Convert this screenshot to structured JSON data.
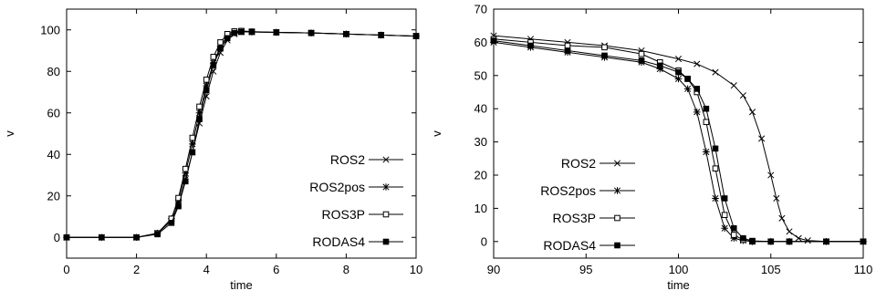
{
  "chart_data": [
    {
      "type": "line",
      "title": "",
      "xlabel": "time",
      "ylabel": "v",
      "xlim": [
        0,
        10
      ],
      "ylim": [
        -10,
        110
      ],
      "xticks": [
        "0",
        "2",
        "4",
        "6",
        "8",
        "10"
      ],
      "yticks": [
        "0",
        "20",
        "40",
        "60",
        "80",
        "100"
      ],
      "grid": false,
      "legend_position": "bottom-right",
      "series": [
        {
          "name": "ROS2",
          "marker": "x-cross",
          "x": [
            0,
            1,
            2,
            2.6,
            3.0,
            3.2,
            3.4,
            3.6,
            3.8,
            4.0,
            4.2,
            4.4,
            4.6,
            4.8,
            5.0,
            5.3,
            6,
            7,
            8,
            9,
            10
          ],
          "y": [
            0,
            0,
            0,
            2,
            8,
            16,
            28,
            41,
            55,
            68,
            80,
            89,
            95,
            98,
            99,
            99,
            98.8,
            98.5,
            98,
            97.5,
            97
          ]
        },
        {
          "name": "ROS2pos",
          "marker": "star",
          "x": [
            0,
            1,
            2,
            2.6,
            3.0,
            3.2,
            3.4,
            3.6,
            3.8,
            4.0,
            4.2,
            4.4,
            4.6,
            4.8,
            5.0,
            5.3,
            6,
            7,
            8,
            9,
            10
          ],
          "y": [
            0,
            0,
            0,
            2,
            9,
            18,
            31,
            45,
            60,
            73,
            84,
            92,
            97,
            99,
            99.3,
            99,
            98.8,
            98.5,
            98,
            97.5,
            97
          ]
        },
        {
          "name": "ROS3P",
          "marker": "open-square",
          "x": [
            0,
            1,
            2,
            2.6,
            3.0,
            3.2,
            3.4,
            3.6,
            3.8,
            4.0,
            4.2,
            4.4,
            4.6,
            4.8,
            5.0,
            5.3,
            6,
            7,
            8,
            9,
            10
          ],
          "y": [
            0,
            0,
            0,
            2,
            9,
            19,
            33,
            48,
            63,
            76,
            87,
            94,
            98,
            99.3,
            99.5,
            99.2,
            98.8,
            98.5,
            98,
            97.5,
            97
          ]
        },
        {
          "name": "RODAS4",
          "marker": "filled-square",
          "x": [
            0,
            1,
            2,
            2.6,
            3.0,
            3.2,
            3.4,
            3.6,
            3.8,
            4.0,
            4.2,
            4.4,
            4.6,
            4.8,
            5.0,
            5.3,
            6,
            7,
            8,
            9,
            10
          ],
          "y": [
            0,
            0,
            0,
            1.5,
            7,
            15,
            27,
            41,
            57,
            71,
            83,
            91,
            96,
            98.5,
            99,
            99,
            98.8,
            98.5,
            98,
            97.5,
            97
          ]
        }
      ]
    },
    {
      "type": "line",
      "title": "",
      "xlabel": "time",
      "ylabel": "v",
      "xlim": [
        90,
        110
      ],
      "ylim": [
        -5,
        70
      ],
      "xticks": [
        "90",
        "95",
        "100",
        "105",
        "110"
      ],
      "yticks": [
        "0",
        "10",
        "20",
        "30",
        "40",
        "50",
        "60",
        "70"
      ],
      "grid": false,
      "legend_position": "bottom-left",
      "series": [
        {
          "name": "ROS2",
          "marker": "x-cross",
          "x": [
            90,
            92,
            94,
            96,
            98,
            100,
            101,
            102,
            103,
            103.5,
            104,
            104.5,
            105,
            105.3,
            105.6,
            106,
            106.5,
            107,
            108,
            110
          ],
          "y": [
            62,
            61,
            60,
            59,
            57.5,
            55,
            53.5,
            51,
            47,
            44,
            39,
            31,
            20,
            13,
            7,
            3,
            1,
            0.3,
            0,
            0
          ]
        },
        {
          "name": "ROS2pos",
          "marker": "star",
          "x": [
            90,
            92,
            94,
            96,
            98,
            99,
            100,
            100.5,
            101,
            101.5,
            102,
            102.5,
            103,
            103.5,
            104,
            105,
            106,
            108,
            110
          ],
          "y": [
            60,
            58.5,
            57,
            55.5,
            54,
            52,
            49,
            46,
            39,
            27,
            13,
            4,
            1,
            0.3,
            0,
            0,
            0,
            0,
            0
          ]
        },
        {
          "name": "ROS3P",
          "marker": "open-square",
          "x": [
            90,
            92,
            94,
            96,
            98,
            99,
            100,
            100.5,
            101,
            101.5,
            102,
            102.5,
            103,
            103.5,
            104,
            105,
            106,
            108,
            110
          ],
          "y": [
            61,
            60,
            59,
            58.5,
            56.5,
            54,
            51.5,
            49,
            45,
            36,
            22,
            8,
            2,
            0.5,
            0,
            0,
            0,
            0,
            0
          ]
        },
        {
          "name": "RODAS4",
          "marker": "filled-square",
          "x": [
            90,
            92,
            94,
            96,
            98,
            99,
            100,
            100.5,
            101,
            101.5,
            102,
            102.5,
            103,
            103.5,
            104,
            105,
            106,
            108,
            110
          ],
          "y": [
            60.5,
            59,
            57.5,
            56,
            54.5,
            53,
            51,
            49,
            46,
            40,
            28,
            13,
            4,
            1,
            0.2,
            0,
            0,
            0,
            0
          ]
        }
      ]
    }
  ]
}
